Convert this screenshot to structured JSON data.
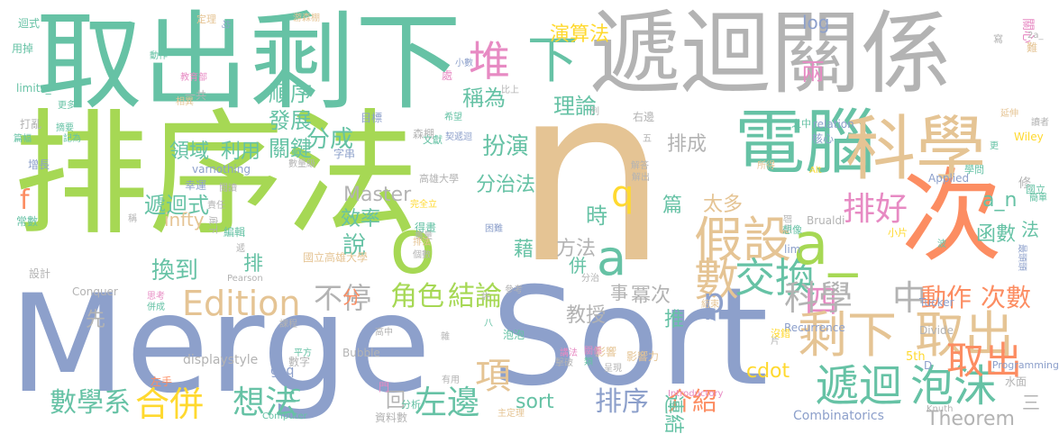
{
  "palette": {
    "green": "#66c2a5",
    "lime": "#a6d854",
    "orange": "#fc8d62",
    "blue": "#8da0cb",
    "tan": "#e5c494",
    "gray": "#b3b3b3",
    "pink": "#e78ac3",
    "yellow": "#ffd92f"
  },
  "words": [
    {
      "t": "取出剩下",
      "c": "green"
    },
    {
      "t": "遞迴關係",
      "c": "gray"
    },
    {
      "t": "排序法",
      "c": "lime"
    },
    {
      "t": "n",
      "c": "tan"
    },
    {
      "t": "次",
      "c": "orange"
    },
    {
      "t": "電腦",
      "c": "green"
    },
    {
      "t": "科學",
      "c": "tan"
    },
    {
      "t": "Merge",
      "c": "blue"
    },
    {
      "t": "Sort",
      "c": "blue"
    },
    {
      "t": "o",
      "c": "lime"
    },
    {
      "t": "堆",
      "c": "pink"
    },
    {
      "t": "下",
      "c": "green"
    },
    {
      "t": "假設",
      "c": "tan"
    },
    {
      "t": "排好",
      "c": "pink"
    },
    {
      "t": "數",
      "c": "tan"
    },
    {
      "t": "交換",
      "c": "green"
    },
    {
      "t": "四",
      "c": "pink"
    },
    {
      "t": "a_",
      "c": "lime"
    },
    {
      "t": "a",
      "c": "green"
    },
    {
      "t": "q",
      "c": "yellow"
    },
    {
      "t": "剩下",
      "c": "tan"
    },
    {
      "t": "取出",
      "c": "tan"
    },
    {
      "t": "遞迴",
      "c": "green"
    },
    {
      "t": "泡沫",
      "c": "green"
    },
    {
      "t": "科學",
      "c": "gray"
    },
    {
      "t": "中",
      "c": "gray"
    },
    {
      "t": "Edition",
      "c": "tan"
    },
    {
      "t": "不停",
      "c": "gray"
    },
    {
      "t": "角色",
      "c": "lime"
    },
    {
      "t": "結論",
      "c": "lime"
    },
    {
      "t": "動作",
      "c": "orange"
    },
    {
      "t": "次數",
      "c": "orange"
    },
    {
      "t": "項",
      "c": "tan"
    },
    {
      "t": "合併",
      "c": "yellow"
    },
    {
      "t": "想法",
      "c": "green"
    },
    {
      "t": "左邊",
      "c": "green"
    },
    {
      "t": "排序",
      "c": "blue"
    },
    {
      "t": "介紹",
      "c": "orange"
    },
    {
      "t": "數學系",
      "c": "green"
    },
    {
      "t": "連結",
      "c": "green"
    },
    {
      "t": "Theorem",
      "c": "gray"
    },
    {
      "t": "順序",
      "c": "green"
    },
    {
      "t": "發展",
      "c": "green"
    },
    {
      "t": "關鍵",
      "c": "green"
    },
    {
      "t": "稱為",
      "c": "green"
    },
    {
      "t": "兩",
      "c": "pink"
    },
    {
      "t": "演算法",
      "c": "yellow"
    },
    {
      "t": "理論",
      "c": "green"
    },
    {
      "t": "領域",
      "c": "green"
    },
    {
      "t": "利用",
      "c": "green"
    },
    {
      "t": "分成",
      "c": "green"
    },
    {
      "t": "扮演",
      "c": "green"
    },
    {
      "t": "排成",
      "c": "gray"
    },
    {
      "t": "遞迴式",
      "c": "green"
    },
    {
      "t": "Master",
      "c": "gray"
    },
    {
      "t": "效率",
      "c": "green"
    },
    {
      "t": "分治法",
      "c": "green"
    },
    {
      "t": "時",
      "c": "green"
    },
    {
      "t": "太多",
      "c": "tan"
    },
    {
      "t": "a_n",
      "c": "green"
    },
    {
      "t": "infty",
      "c": "tan"
    },
    {
      "t": "說",
      "c": "green"
    },
    {
      "t": "方法",
      "c": "gray"
    },
    {
      "t": "換到",
      "c": "green"
    },
    {
      "t": "排",
      "c": "green"
    },
    {
      "t": "函數",
      "c": "green"
    },
    {
      "t": "法",
      "c": "green"
    },
    {
      "t": "教授",
      "c": "gray"
    },
    {
      "t": "冪次",
      "c": "gray"
    },
    {
      "t": "推",
      "c": "green"
    },
    {
      "t": "先",
      "c": "gray"
    },
    {
      "t": "p",
      "c": "blue"
    },
    {
      "t": "f",
      "c": "orange"
    },
    {
      "t": "c",
      "c": "green"
    },
    {
      "t": "sort",
      "c": "green"
    },
    {
      "t": "cdot",
      "c": "yellow"
    },
    {
      "t": "取出",
      "c": "orange"
    },
    {
      "t": "log",
      "c": "blue"
    },
    {
      "t": "篇",
      "c": "green"
    },
    {
      "t": "藉",
      "c": "green"
    },
    {
      "t": "分",
      "c": "orange"
    },
    {
      "t": "併",
      "c": "green"
    },
    {
      "t": "事",
      "c": "gray"
    },
    {
      "t": "三",
      "c": "gray"
    },
    {
      "t": "回",
      "c": "gray"
    },
    {
      "t": "Combinatorics",
      "c": "blue"
    },
    {
      "t": "Bubble",
      "c": "gray"
    },
    {
      "t": "displaystyle",
      "c": "gray"
    },
    {
      "t": "geq",
      "c": "blue"
    },
    {
      "t": "5th",
      "c": "yellow"
    },
    {
      "t": "Recurrence",
      "c": "blue"
    },
    {
      "t": "Divide",
      "c": "gray"
    },
    {
      "t": "Conquer",
      "c": "gray"
    },
    {
      "t": "Programming",
      "c": "blue"
    },
    {
      "t": "Computer",
      "c": "green"
    },
    {
      "t": "Introductory",
      "c": "pink"
    },
    {
      "t": "Applied",
      "c": "blue"
    },
    {
      "t": "Brualdi",
      "c": "gray"
    },
    {
      "t": "Tucker",
      "c": "blue"
    },
    {
      "t": "Pearson",
      "c": "gray"
    },
    {
      "t": "Knuth",
      "c": "gray"
    },
    {
      "t": "Wiley",
      "c": "yellow"
    },
    {
      "t": "varnothing",
      "c": "blue"
    },
    {
      "t": "limits_",
      "c": "green"
    },
    {
      "t": "relation",
      "c": "blue"
    },
    {
      "t": "lim",
      "c": "blue"
    },
    {
      "t": "修",
      "c": "gray"
    },
    {
      "t": "迴式",
      "c": "green"
    },
    {
      "t": "用掉",
      "c": "green"
    },
    {
      "t": "動作",
      "c": "green"
    },
    {
      "t": "教育部",
      "c": "pink"
    },
    {
      "t": "定理",
      "c": "tan"
    },
    {
      "t": "均",
      "c": "blue"
    },
    {
      "t": "游森棚",
      "c": "tan"
    },
    {
      "t": "處",
      "c": "pink"
    },
    {
      "t": "小數",
      "c": "blue"
    },
    {
      "t": "比上",
      "c": "gray"
    },
    {
      "t": "相異",
      "c": "tan"
    },
    {
      "t": "一共",
      "c": "gray"
    },
    {
      "t": "更多",
      "c": "green"
    },
    {
      "t": "打亂",
      "c": "gray"
    },
    {
      "t": "摘要",
      "c": "green"
    },
    {
      "t": "記為",
      "c": "green"
    },
    {
      "t": "篇幅",
      "c": "green"
    },
    {
      "t": "目標",
      "c": "blue"
    },
    {
      "t": "希望",
      "c": "green"
    },
    {
      "t": "契遞迴",
      "c": "blue"
    },
    {
      "t": "列",
      "c": "gray"
    },
    {
      "t": "右邊",
      "c": "gray"
    },
    {
      "t": "之中",
      "c": "green"
    },
    {
      "t": "延伸",
      "c": "tan"
    },
    {
      "t": "讀者",
      "c": "gray"
    },
    {
      "t": "核心",
      "c": "blue"
    },
    {
      "t": "森棚",
      "c": "gray"
    },
    {
      "t": "文獻",
      "c": "green"
    },
    {
      "t": "字串",
      "c": "blue"
    },
    {
      "t": "增長",
      "c": "blue"
    },
    {
      "t": "幸運",
      "c": "blue"
    },
    {
      "t": "閱讀",
      "c": "gray"
    },
    {
      "t": "數量級",
      "c": "gray"
    },
    {
      "t": "責任",
      "c": "gray"
    },
    {
      "t": "高雄大學",
      "c": "gray"
    },
    {
      "t": "完全立",
      "c": "yellow"
    },
    {
      "t": "解答",
      "c": "gray"
    },
    {
      "t": "解出",
      "c": "gray"
    },
    {
      "t": "所得",
      "c": "tan"
    },
    {
      "t": "學問",
      "c": "green"
    },
    {
      "t": "國立",
      "c": "green"
    },
    {
      "t": "簡單",
      "c": "green"
    },
    {
      "t": "常數",
      "c": "green"
    },
    {
      "t": "稱",
      "c": "gray"
    },
    {
      "t": "底下",
      "c": "gray"
    },
    {
      "t": "編輯",
      "c": "green"
    },
    {
      "t": "得畫",
      "c": "green"
    },
    {
      "t": "書量",
      "c": "gray"
    },
    {
      "t": "即可",
      "c": "gray"
    },
    {
      "t": "困難",
      "c": "blue"
    },
    {
      "t": "排法",
      "c": "tan"
    },
    {
      "t": "個數",
      "c": "gray"
    },
    {
      "t": "國立高雄大學",
      "c": "tan"
    },
    {
      "t": "想像",
      "c": "green"
    },
    {
      "t": "小片",
      "c": "yellow"
    },
    {
      "t": "波",
      "c": "green"
    },
    {
      "t": "最頭頭",
      "c": "blue"
    },
    {
      "t": "設計",
      "c": "gray"
    },
    {
      "t": "思考",
      "c": "pink"
    },
    {
      "t": "併成",
      "c": "green"
    },
    {
      "t": "參考",
      "c": "gray"
    },
    {
      "t": "許",
      "c": "gray"
    },
    {
      "t": "課程",
      "c": "gray"
    },
    {
      "t": "泡泡",
      "c": "green"
    },
    {
      "t": "八",
      "c": "green"
    },
    {
      "t": "高中",
      "c": "gray"
    },
    {
      "t": "結束",
      "c": "tan"
    },
    {
      "t": "沒錯",
      "c": "yellow"
    },
    {
      "t": "片",
      "c": "gray"
    },
    {
      "t": "影響",
      "c": "tan"
    },
    {
      "t": "影響力",
      "c": "tan"
    },
    {
      "t": "數字",
      "c": "gray"
    },
    {
      "t": "平方",
      "c": "green"
    },
    {
      "t": "講法",
      "c": "pink"
    },
    {
      "t": "關係",
      "c": "pink"
    },
    {
      "t": "類",
      "c": "green"
    },
    {
      "t": "擊破",
      "c": "gray"
    },
    {
      "t": "呈現",
      "c": "gray"
    },
    {
      "t": "左手",
      "c": "orange"
    },
    {
      "t": "門",
      "c": "pink"
    },
    {
      "t": "分析",
      "c": "green"
    },
    {
      "t": "有用",
      "c": "gray"
    },
    {
      "t": "主定理",
      "c": "tan"
    },
    {
      "t": "資料數",
      "c": "gray"
    },
    {
      "t": "中",
      "c": "green"
    },
    {
      "t": "水面",
      "c": "gray"
    },
    {
      "t": "關心",
      "c": "pink"
    },
    {
      "t": "難",
      "c": "tan"
    },
    {
      "t": "寫",
      "c": "gray"
    },
    {
      "t": "2a_",
      "c": "gray"
    },
    {
      "t": "五",
      "c": "gray"
    },
    {
      "t": "分治",
      "c": "gray"
    },
    {
      "t": "雜",
      "c": "gray"
    },
    {
      "t": "D",
      "c": "blue"
    },
    {
      "t": "Alt",
      "c": "yellow"
    },
    {
      "t": "遞",
      "c": "gray"
    },
    {
      "t": "更",
      "c": "green"
    }
  ]
}
